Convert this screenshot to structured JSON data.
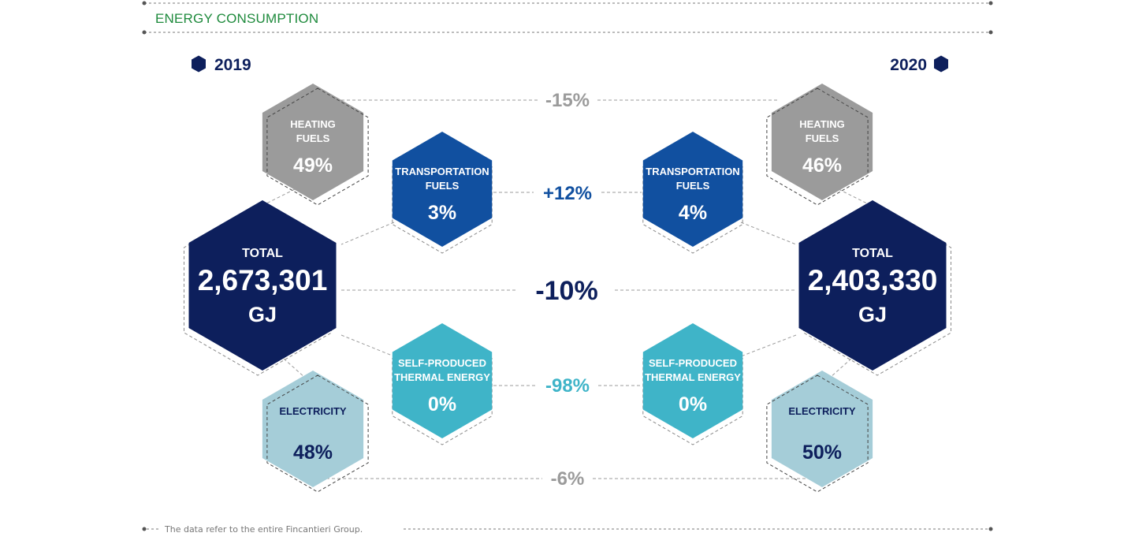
{
  "header": {
    "title": "ENERGY CONSUMPTION",
    "title_color": "#1e8a3c"
  },
  "years": {
    "left": "2019",
    "right": "2020",
    "marker_color": "#0d1f5c"
  },
  "colors": {
    "heating": "#9b9b9b",
    "transport": "#1150a0",
    "total": "#0d1f5c",
    "thermal": "#3fb4c8",
    "electricity": "#a5cdd8",
    "gray_text": "#9b9b9b"
  },
  "categories": {
    "heating": {
      "line1": "HEATING",
      "line2": "FUELS"
    },
    "transport": {
      "line1": "TRANSPORTATION",
      "line2": "FUELS"
    },
    "total": {
      "line1": "TOTAL",
      "unit": "GJ"
    },
    "thermal": {
      "line1": "SELF-PRODUCED",
      "line2": "THERMAL ENERGY"
    },
    "electricity": {
      "line1": "ELECTRICITY"
    }
  },
  "y2019": {
    "heating_pct": "49%",
    "transport_pct": "3%",
    "total_value": "2,673,301",
    "thermal_pct": "0%",
    "electricity_pct": "48%"
  },
  "y2020": {
    "heating_pct": "46%",
    "transport_pct": "4%",
    "total_value": "2,403,330",
    "thermal_pct": "0%",
    "electricity_pct": "50%"
  },
  "changes": {
    "heating": "-15%",
    "transport": "+12%",
    "total": "-10%",
    "thermal": "-98%",
    "electricity": "-6%"
  },
  "footer": {
    "note": "The data refer to the entire Fincantieri Group."
  }
}
